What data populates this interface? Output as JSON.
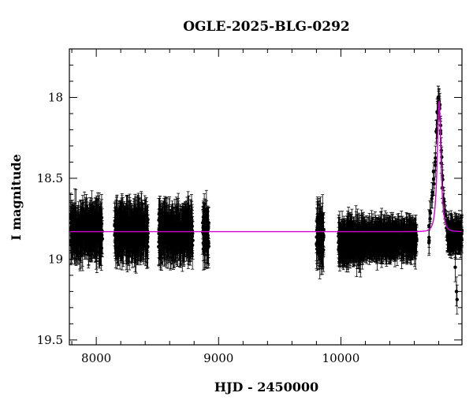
{
  "chart_data": {
    "type": "scatter",
    "title": "OGLE-2025-BLG-0292",
    "xlabel": "HJD - 2450000",
    "ylabel": "I magnitude",
    "xlim": [
      7780,
      10990
    ],
    "ylim": [
      17.7,
      19.53
    ],
    "y_inverted": true,
    "x_ticks": [
      8000,
      9000,
      10000
    ],
    "x_tick_labels": [
      "8000",
      "9000",
      "10000"
    ],
    "y_ticks": [
      18,
      18.5,
      19,
      19.5
    ],
    "y_tick_labels": [
      "18",
      "18.5",
      "19",
      "19.5"
    ],
    "grid": false,
    "legend": "none",
    "colors": {
      "data": "#000000",
      "model": "#d400d4",
      "frame": "#000000"
    },
    "series": [
      {
        "kind": "points_with_errorbars",
        "observing_seasons": [
          {
            "x_range": [
              7790,
              8050
            ],
            "mag_mean": 18.83,
            "mag_scatter": 0.09,
            "errorbar_half": 0.12
          },
          {
            "x_range": [
              8150,
              8425
            ],
            "mag_mean": 18.83,
            "mag_scatter": 0.09,
            "errorbar_half": 0.12
          },
          {
            "x_range": [
              8510,
              8790
            ],
            "mag_mean": 18.84,
            "mag_scatter": 0.09,
            "errorbar_half": 0.12
          },
          {
            "x_range": [
              8870,
              8920
            ],
            "mag_mean": 18.84,
            "mag_scatter": 0.09,
            "errorbar_half": 0.12
          },
          {
            "x_range": [
              9800,
              9860
            ],
            "mag_mean": 18.87,
            "mag_scatter": 0.12,
            "errorbar_half": 0.12
          },
          {
            "x_range": [
              9980,
              10180
            ],
            "mag_mean": 18.89,
            "mag_scatter": 0.07,
            "errorbar_half": 0.1
          },
          {
            "x_range": [
              10180,
              10620
            ],
            "mag_mean": 18.88,
            "mag_scatter": 0.06,
            "errorbar_half": 0.09
          },
          {
            "x_range": [
              10720,
              10990
            ],
            "mag_mean": 18.85,
            "mag_scatter": 0.05,
            "errorbar_half": 0.08
          }
        ],
        "event_points": [
          {
            "x": 10730,
            "y": 18.72
          },
          {
            "x": 10745,
            "y": 18.62
          },
          {
            "x": 10760,
            "y": 18.5
          },
          {
            "x": 10772,
            "y": 18.38
          },
          {
            "x": 10782,
            "y": 18.22
          },
          {
            "x": 10790,
            "y": 18.1
          },
          {
            "x": 10797,
            "y": 18.03
          },
          {
            "x": 10803,
            "y": 18.01
          },
          {
            "x": 10808,
            "y": 18.06
          },
          {
            "x": 10815,
            "y": 18.2
          },
          {
            "x": 10822,
            "y": 18.36
          },
          {
            "x": 10830,
            "y": 18.52
          },
          {
            "x": 10840,
            "y": 18.64
          },
          {
            "x": 10852,
            "y": 18.72
          },
          {
            "x": 10865,
            "y": 18.78
          }
        ],
        "outliers": [
          {
            "x": 10945,
            "y": 19.2
          },
          {
            "x": 10950,
            "y": 19.25
          },
          {
            "x": 10935,
            "y": 19.05
          }
        ]
      },
      {
        "kind": "model_curve",
        "baseline_mag": 18.83,
        "peak_mag": 18.02,
        "t0": 10803,
        "tE": 25
      }
    ]
  }
}
